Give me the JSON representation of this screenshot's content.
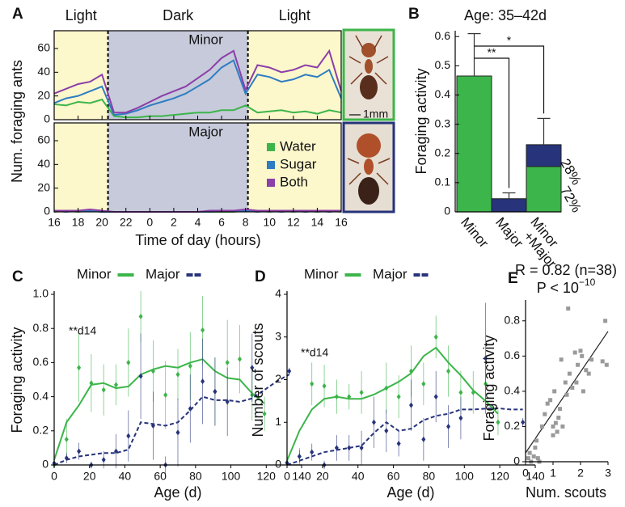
{
  "chart_data": [
    {
      "type": "line",
      "panel": "A",
      "xlabel": "Time of day (hours)",
      "ylabel": "Num. foraging ants",
      "scale_bar": "1mm",
      "phases": [
        {
          "label": "Light",
          "start": 0,
          "end": 4.5,
          "color": "#fdf7cc"
        },
        {
          "label": "Dark",
          "start": 4.5,
          "end": 16.2,
          "color": "#c6cadb"
        },
        {
          "label": "Light",
          "start": 16.2,
          "end": 24,
          "color": "#fdf7cc"
        }
      ],
      "x": [
        0,
        1,
        2,
        3,
        4,
        5,
        6,
        7,
        8,
        9,
        10,
        11,
        12,
        13,
        14,
        15,
        16,
        17,
        18,
        19,
        20,
        21,
        22,
        23,
        24
      ],
      "xlim": [
        0,
        24
      ],
      "xticks": [
        {
          "value": 0,
          "label": "16"
        },
        {
          "value": 2,
          "label": "18"
        },
        {
          "value": 4,
          "label": "20"
        },
        {
          "value": 6,
          "label": "22"
        },
        {
          "value": 8,
          "label": "0"
        },
        {
          "value": 10,
          "label": "2"
        },
        {
          "value": 12,
          "label": "4"
        },
        {
          "value": 14,
          "label": "6"
        },
        {
          "value": 16,
          "label": "8"
        },
        {
          "value": 18,
          "label": "10"
        },
        {
          "value": 20,
          "label": "12"
        },
        {
          "value": 22,
          "label": "14"
        },
        {
          "value": 24,
          "label": "16"
        }
      ],
      "ylim": [
        0,
        75
      ],
      "yticks": [
        0,
        20,
        40,
        60
      ],
      "series": [
        {
          "name": "Water",
          "color": "#3cb54a"
        },
        {
          "name": "Sugar",
          "color": "#2e7dc2"
        },
        {
          "name": "Both",
          "color": "#8b3fa8"
        }
      ],
      "subplots": [
        {
          "title": "Minor",
          "series": [
            {
              "values": [
                13,
                12,
                15,
                14,
                17,
                3,
                2,
                2,
                3,
                3,
                4,
                5,
                6,
                6,
                8,
                8,
                12,
                6,
                7,
                8,
                6,
                7,
                5,
                8,
                6
              ]
            },
            {
              "values": [
                14,
                18,
                20,
                24,
                28,
                4,
                5,
                8,
                12,
                15,
                18,
                22,
                28,
                34,
                44,
                50,
                22,
                38,
                36,
                32,
                34,
                38,
                36,
                42,
                18
              ]
            },
            {
              "values": [
                22,
                26,
                30,
                32,
                38,
                6,
                6,
                10,
                15,
                20,
                24,
                28,
                35,
                42,
                52,
                58,
                25,
                46,
                44,
                40,
                42,
                46,
                44,
                58,
                24
              ]
            }
          ]
        },
        {
          "title": "Major",
          "series": [
            {
              "values": [
                0,
                1,
                0,
                1,
                0,
                0,
                0,
                0,
                0,
                0,
                0,
                0,
                0,
                0,
                0,
                0,
                1,
                1,
                0,
                1,
                0,
                1,
                0,
                1,
                0
              ]
            },
            {
              "values": [
                1,
                0,
                1,
                1,
                0,
                0,
                0,
                0,
                0,
                0,
                0,
                0,
                0,
                0,
                1,
                1,
                1,
                0,
                1,
                0,
                1,
                0,
                1,
                0,
                1
              ]
            },
            {
              "values": [
                1,
                1,
                1,
                2,
                1,
                0,
                0,
                0,
                0,
                0,
                0,
                0,
                0,
                1,
                1,
                1,
                2,
                1,
                1,
                1,
                1,
                1,
                1,
                1,
                1
              ]
            }
          ]
        }
      ]
    },
    {
      "type": "bar",
      "panel": "B",
      "title": "Age: 35–42d",
      "ylabel": "Foraging activity",
      "categories": [
        "Minor",
        "Major",
        "Minor +Major"
      ],
      "series": [
        {
          "color": "#3cb54a",
          "values": [
            0.465,
            null,
            0.155
          ]
        },
        {
          "color": "#27337a",
          "values": [
            null,
            0.045,
            0.075
          ]
        }
      ],
      "errors": [
        0.145,
        0.02,
        0.09
      ],
      "ylim": [
        0,
        0.62
      ],
      "yticks": [
        0,
        0.1,
        0.2,
        0.3,
        0.4,
        0.5,
        0.6
      ],
      "significance": [
        {
          "from": 0,
          "to": 1,
          "label": "**"
        },
        {
          "from": 0,
          "to": 2,
          "label": "*"
        }
      ],
      "annotations": [
        "28%",
        "72%"
      ]
    },
    {
      "type": "scatter",
      "panel": "C",
      "xlabel": "Age (d)",
      "ylabel": "Foraging activity",
      "annotation": "**d14",
      "xlim": [
        0,
        140
      ],
      "xticks": [
        0,
        20,
        40,
        60,
        80,
        100,
        120,
        140
      ],
      "ylim": [
        0,
        1
      ],
      "yticks": [
        0,
        0.2,
        0.4,
        0.6,
        0.8,
        {
          "value": 1,
          "label": "1.0"
        }
      ],
      "series": [
        {
          "name": "Minor",
          "color": "#3cb54a",
          "x": [
            0,
            7,
            14,
            21,
            28,
            35,
            42,
            49,
            56,
            63,
            70,
            77,
            84,
            91,
            98,
            105,
            112,
            119
          ],
          "values": [
            0,
            0.15,
            0.57,
            0.48,
            0.44,
            0.47,
            0.6,
            0.87,
            0.55,
            0.41,
            0.53,
            0.58,
            0.79,
            0.43,
            0.6,
            0.62,
            0.41,
            0.3
          ],
          "errors": [
            0.01,
            0.12,
            0.2,
            0.17,
            0.15,
            0.12,
            0.2,
            0.15,
            0.18,
            0.2,
            0.15,
            0.2,
            0.2,
            0.2,
            0.25,
            0.2,
            0.15,
            0.1
          ],
          "fit_x": [
            0,
            7,
            14,
            21,
            28,
            35,
            42,
            49,
            56,
            63,
            70,
            77,
            84,
            91,
            98,
            105,
            112,
            119
          ],
          "fit_values": [
            0.03,
            0.25,
            0.35,
            0.47,
            0.48,
            0.45,
            0.46,
            0.53,
            0.56,
            0.58,
            0.57,
            0.6,
            0.62,
            0.55,
            0.51,
            0.5,
            0.42,
            0.36
          ]
        },
        {
          "name": "Major",
          "color": "#27337a",
          "dashed": true,
          "x": [
            0,
            7,
            14,
            21,
            28,
            35,
            42,
            49,
            56,
            63,
            70,
            77,
            84,
            91,
            98,
            112,
            133
          ],
          "values": [
            0.01,
            0.04,
            0.08,
            0,
            0.03,
            0.08,
            0.17,
            0.52,
            0.23,
            0,
            0.19,
            0.33,
            0.49,
            0.43,
            0.37,
            0.57,
            0.55
          ],
          "errors": [
            0.01,
            0.03,
            0.05,
            0.02,
            0.05,
            0.1,
            0.15,
            0.25,
            0.2,
            0.05,
            0.2,
            0.2,
            0.25,
            0.2,
            0.2,
            0.2,
            0.02
          ],
          "fit_x": [
            0,
            7,
            14,
            21,
            28,
            35,
            42,
            49,
            56,
            63,
            70,
            77,
            84,
            91,
            98,
            105,
            112,
            119,
            126,
            133
          ],
          "fit_values": [
            0,
            0.03,
            0.05,
            0.06,
            0.07,
            0.07,
            0.09,
            0.25,
            0.24,
            0.23,
            0.25,
            0.32,
            0.4,
            0.38,
            0.38,
            0.37,
            0.39,
            0.44,
            0.49,
            0.53
          ]
        }
      ]
    },
    {
      "type": "scatter",
      "panel": "D",
      "xlabel": "Age (d)",
      "ylabel": "Number of scouts",
      "annotation": "**d14",
      "xlim": [
        0,
        140
      ],
      "xticks": [
        0,
        20,
        40,
        60,
        80,
        100,
        120,
        140
      ],
      "ylim": [
        0,
        4
      ],
      "yticks": [
        0,
        1,
        2,
        3,
        4
      ],
      "series": [
        {
          "name": "Minor",
          "color": "#3cb54a",
          "x": [
            0,
            7,
            14,
            21,
            28,
            35,
            42,
            56,
            63,
            70,
            77,
            84,
            91,
            98,
            105,
            112,
            119
          ],
          "values": [
            0.05,
            0.2,
            1.9,
            1.85,
            1.6,
            1.6,
            1.7,
            1.8,
            1.6,
            2.2,
            1.9,
            3.0,
            2.2,
            1.7,
            1.7,
            1.9,
            1.0
          ],
          "errors": [
            0.05,
            0.2,
            0.5,
            0.5,
            0.4,
            0.3,
            0.5,
            0.6,
            0.5,
            0.6,
            0.5,
            0.5,
            0.6,
            0.5,
            0.5,
            0.6,
            0.3
          ],
          "fit_x": [
            0,
            7,
            14,
            21,
            28,
            35,
            42,
            49,
            56,
            63,
            70,
            77,
            84,
            91,
            98,
            105,
            112,
            119
          ],
          "fit_values": [
            0.1,
            0.8,
            1.3,
            1.55,
            1.6,
            1.55,
            1.55,
            1.65,
            1.8,
            1.95,
            2.15,
            2.55,
            2.75,
            2.4,
            2.1,
            1.75,
            1.5,
            1.2
          ]
        },
        {
          "name": "Major",
          "color": "#27337a",
          "dashed": true,
          "x": [
            0,
            7,
            14,
            21,
            28,
            35,
            42,
            49,
            56,
            63,
            70,
            77,
            84,
            91,
            98,
            112,
            133
          ],
          "values": [
            0.05,
            0.2,
            0.3,
            0,
            0.4,
            0.4,
            0.4,
            1.0,
            0.8,
            0.5,
            1.4,
            0.6,
            1.6,
            0.9,
            1.1,
            2.5,
            1.0
          ],
          "errors": [
            0.05,
            0.15,
            0.2,
            0.1,
            0.3,
            0.3,
            0.4,
            0.6,
            0.5,
            0.3,
            0.6,
            0.5,
            0.6,
            0.5,
            0.5,
            1.3,
            0.1
          ],
          "fit_x": [
            0,
            7,
            14,
            21,
            28,
            35,
            42,
            49,
            56,
            63,
            70,
            77,
            84,
            91,
            98,
            105,
            112,
            119,
            126,
            133
          ],
          "fit_values": [
            0,
            0.1,
            0.2,
            0.3,
            0.35,
            0.4,
            0.45,
            0.75,
            1.0,
            0.8,
            0.85,
            1.05,
            1.15,
            1.2,
            1.3,
            1.3,
            1.32,
            1.33,
            1.3,
            1.3
          ]
        }
      ]
    },
    {
      "type": "scatter",
      "panel": "E",
      "title": "R = 0.82 (n=38)",
      "subtitle": "P < 10",
      "subtitle_exponent": "−10",
      "xlabel": "Num. scouts",
      "ylabel": "Foraging activity",
      "xlim": [
        0,
        3
      ],
      "xticks": [
        0,
        1,
        2,
        3
      ],
      "ylim": [
        0,
        0.9
      ],
      "yticks": [
        0,
        0.2,
        0.4,
        0.6,
        0.8
      ],
      "series": [
        {
          "color": "#9a9a9a",
          "marker": "square",
          "x": [
            0.1,
            0.15,
            0.2,
            0.3,
            0.35,
            0.4,
            0.45,
            0.5,
            0.6,
            0.7,
            0.8,
            0.9,
            1.0,
            1.0,
            1.05,
            1.1,
            1.15,
            1.2,
            1.25,
            1.3,
            1.35,
            1.45,
            1.5,
            1.55,
            1.6,
            1.7,
            1.8,
            1.85,
            1.9,
            2.0,
            2.05,
            2.1,
            2.2,
            2.3,
            2.4,
            2.8,
            2.9,
            2.95
          ],
          "values": [
            0.02,
            0.05,
            0,
            0.03,
            0.08,
            0.12,
            0.02,
            0,
            0.2,
            0.27,
            0.33,
            0.35,
            0.2,
            0.15,
            0.4,
            0.22,
            0.17,
            0.25,
            0.3,
            0.58,
            0.2,
            0.45,
            0.38,
            0.87,
            0.5,
            0.42,
            0.62,
            0.45,
            0.55,
            0.63,
            0.6,
            0.4,
            0.52,
            0.5,
            0.58,
            0.57,
            0.8,
            0.55
          ]
        }
      ],
      "fit": {
        "x": [
          0,
          3
        ],
        "values": [
          0.05,
          0.74
        ]
      }
    }
  ]
}
